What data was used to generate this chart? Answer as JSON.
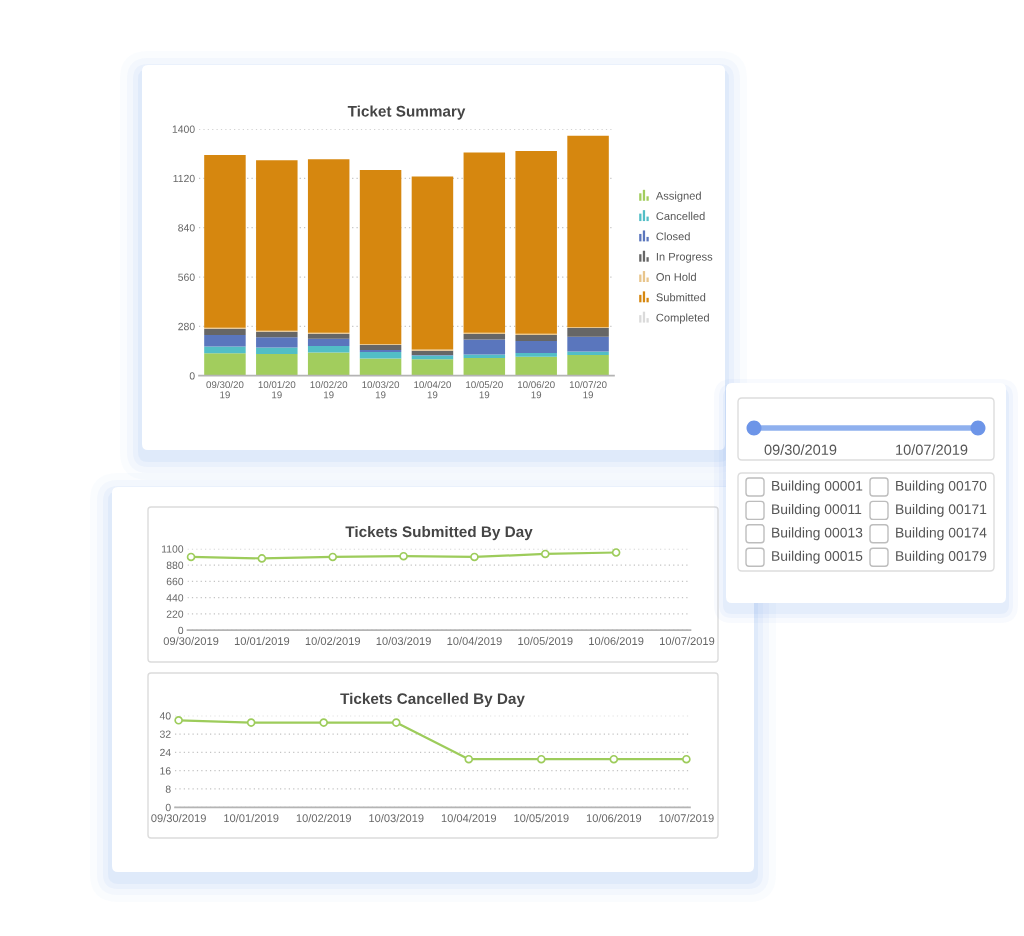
{
  "chart_data": [
    {
      "type": "bar",
      "title": "Ticket Summary",
      "categories": [
        "09/30/2019",
        "10/01/2019",
        "10/02/2019",
        "10/03/2019",
        "10/04/2019",
        "10/05/2019",
        "10/06/2019",
        "10/07/2019"
      ],
      "stacked": true,
      "series": [
        {
          "name": "Assigned",
          "color": "#a2cd5d",
          "values": [
            127,
            123,
            131,
            98,
            93,
            100,
            108,
            117
          ]
        },
        {
          "name": "Cancelled",
          "color": "#52bec6",
          "values": [
            38,
            37,
            37,
            37,
            21,
            21,
            21,
            21
          ]
        },
        {
          "name": "Closed",
          "color": "#5a76bd",
          "values": [
            66,
            58,
            42,
            11,
            3,
            85,
            68,
            83
          ]
        },
        {
          "name": "In Progress",
          "color": "#666666",
          "values": [
            36,
            32,
            28,
            28,
            25,
            30,
            34,
            50
          ]
        },
        {
          "name": "On Hold",
          "color": "#e8c58c",
          "values": [
            5,
            5,
            6,
            6,
            6,
            8,
            7,
            5
          ]
        },
        {
          "name": "Submitted",
          "color": "#d6870f",
          "values": [
            980,
            967,
            984,
            987,
            982,
            1022,
            1037,
            1086
          ]
        },
        {
          "name": "Completed",
          "color": "#dadada",
          "values": [
            0,
            0,
            0,
            0,
            0,
            0,
            0,
            0
          ]
        }
      ],
      "ylim": [
        0,
        1400
      ],
      "yticks": [
        0,
        280,
        560,
        840,
        1120,
        1400
      ],
      "grid": "y",
      "legend": "right"
    },
    {
      "type": "other",
      "annotations": [
        "09/30/2019",
        "10/07/2019",
        "Building 00001",
        "Building 00011",
        "Building 00013",
        "Building 00015",
        "Building 00170",
        "Building 00171",
        "Building 00174",
        "Building 00179"
      ]
    },
    {
      "type": "line",
      "title": "Tickets Submitted By Day",
      "categories": [
        "09/30/2019",
        "10/01/2019",
        "10/02/2019",
        "10/03/2019",
        "10/04/2019",
        "10/05/2019",
        "10/06/2019",
        "10/07/2019"
      ],
      "series": [
        {
          "color": "#9dcc5b",
          "values": [
            990,
            970,
            990,
            1000,
            990,
            1030,
            1050,
            null
          ]
        }
      ],
      "ylim": [
        0,
        1100
      ],
      "yticks": [
        0,
        220,
        440,
        660,
        880,
        1100
      ],
      "grid": "y",
      "marker": "circle",
      "line_style": "solid"
    },
    {
      "type": "line",
      "title": "Tickets Cancelled By Day",
      "categories": [
        "09/30/2019",
        "10/01/2019",
        "10/02/2019",
        "10/03/2019",
        "10/04/2019",
        "10/05/2019",
        "10/06/2019",
        "10/07/2019"
      ],
      "series": [
        {
          "color": "#9dcc5b",
          "values": [
            38,
            37,
            37,
            37,
            21,
            21,
            21,
            21
          ]
        }
      ],
      "ylim": [
        0,
        40
      ],
      "yticks": [
        0,
        8,
        16,
        24,
        32,
        40
      ],
      "grid": "y",
      "marker": "circle",
      "line_style": "solid"
    }
  ]
}
